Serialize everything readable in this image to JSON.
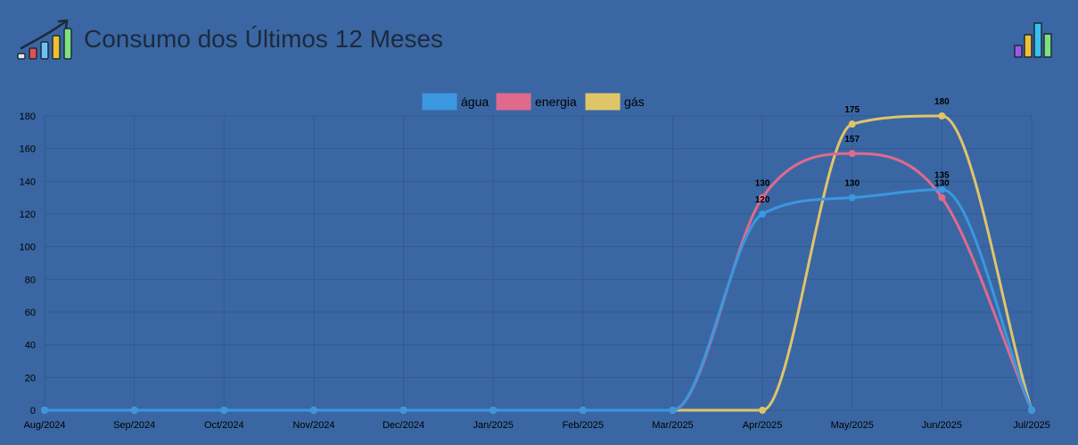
{
  "header": {
    "title": "Consumo dos Últimos 12 Meses",
    "left_icon": "growth-chart-icon",
    "right_icon": "bar-chart-icon"
  },
  "colors": {
    "background": "#3a67a3",
    "grid": "#315a8f",
    "agua": "#3a97e0",
    "energia": "#e06a8c",
    "gas": "#e0c46a",
    "text": "#000000"
  },
  "chart_data": {
    "type": "line",
    "title": "",
    "xlabel": "",
    "ylabel": "",
    "ylim": [
      0,
      180
    ],
    "yticks": [
      0,
      20,
      40,
      60,
      80,
      100,
      120,
      140,
      160,
      180
    ],
    "categories": [
      "Aug/2024",
      "Sep/2024",
      "Oct/2024",
      "Nov/2024",
      "Dec/2024",
      "Jan/2025",
      "Feb/2025",
      "Mar/2025",
      "Apr/2025",
      "May/2025",
      "Jun/2025",
      "Jul/2025"
    ],
    "legend_position": "top-center",
    "grid": true,
    "series": [
      {
        "name": "água",
        "color": "#3a97e0",
        "values": [
          0,
          0,
          0,
          0,
          0,
          0,
          0,
          0,
          120,
          130,
          135,
          0
        ]
      },
      {
        "name": "energia",
        "color": "#e06a8c",
        "values": [
          0,
          0,
          0,
          0,
          0,
          0,
          0,
          0,
          130,
          157,
          130,
          0
        ]
      },
      {
        "name": "gás",
        "color": "#e0c46a",
        "values": [
          0,
          0,
          0,
          0,
          0,
          0,
          0,
          0,
          0,
          175,
          180,
          0
        ]
      }
    ]
  }
}
